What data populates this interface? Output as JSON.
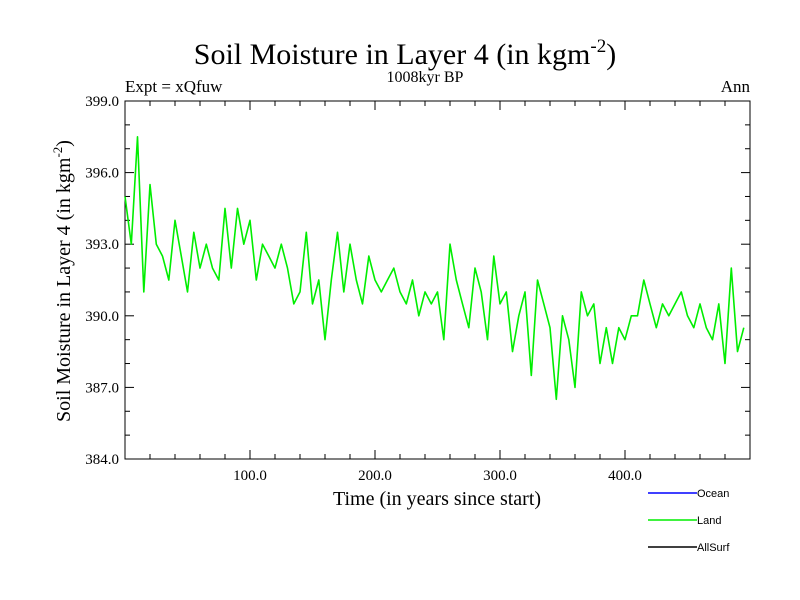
{
  "chart_data": {
    "type": "line",
    "title": "Soil Moisture in Layer 4 (in kgm",
    "title_sup": "-2",
    "title_close": ")",
    "subtitle": "1008kyr BP",
    "left_label": "Expt = xQfuw",
    "right_label": "Ann",
    "xlabel": "Time (in years since start)",
    "ylabel": "Soil Moisture in Layer 4 (in kgm",
    "ylabel_sup": "-2",
    "ylabel_close": ")",
    "xlim": [
      0,
      500
    ],
    "ylim": [
      384.0,
      399.0
    ],
    "x_ticks": [
      100,
      200,
      300,
      400
    ],
    "x_tick_labels": [
      "100.0",
      "200.0",
      "300.0",
      "400.0"
    ],
    "y_ticks": [
      384,
      387,
      390,
      393,
      396,
      399
    ],
    "y_tick_labels": [
      "384.0",
      "387.0",
      "390.0",
      "393.0",
      "396.0",
      "399.0"
    ],
    "legend": [
      {
        "name": "Ocean",
        "color": "#0000ff"
      },
      {
        "name": "Land",
        "color": "#00ee00"
      },
      {
        "name": "AllSurf",
        "color": "#000000"
      }
    ],
    "series": [
      {
        "name": "Land",
        "color": "#00ee00",
        "x_start": 0,
        "x_step": 5,
        "values": [
          395.0,
          393.0,
          397.5,
          391.0,
          395.5,
          393.0,
          392.5,
          391.5,
          394.0,
          392.5,
          391.0,
          393.5,
          392.0,
          393.0,
          392.0,
          391.5,
          394.5,
          392.0,
          394.5,
          393.0,
          394.0,
          391.5,
          393.0,
          392.5,
          392.0,
          393.0,
          392.0,
          390.5,
          391.0,
          393.5,
          390.5,
          391.5,
          389.0,
          391.5,
          393.5,
          391.0,
          393.0,
          391.5,
          390.5,
          392.5,
          391.5,
          391.0,
          391.5,
          392.0,
          391.0,
          390.5,
          391.5,
          390.0,
          391.0,
          390.5,
          391.0,
          389.0,
          393.0,
          391.5,
          390.5,
          389.5,
          392.0,
          391.0,
          389.0,
          392.5,
          390.5,
          391.0,
          388.5,
          390.0,
          391.0,
          387.5,
          391.5,
          390.5,
          389.5,
          386.5,
          390.0,
          389.0,
          387.0,
          391.0,
          390.0,
          390.5,
          388.0,
          389.5,
          388.0,
          389.5,
          389.0,
          390.0,
          390.0,
          391.5,
          390.5,
          389.5,
          390.5,
          390.0,
          390.5,
          391.0,
          390.0,
          389.5,
          390.5,
          389.5,
          389.0,
          390.5,
          388.0,
          392.0,
          388.5,
          389.5
        ]
      }
    ]
  }
}
